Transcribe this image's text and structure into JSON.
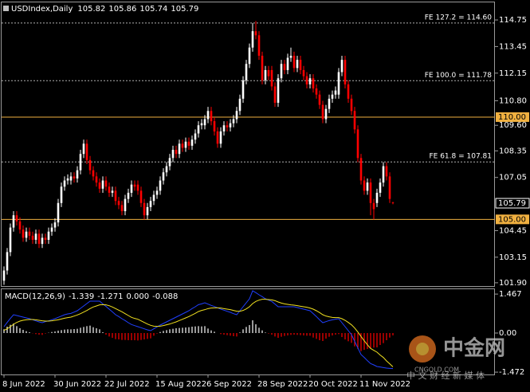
{
  "chart_data": [
    {
      "type": "candlestick",
      "title": "USDIndex,Daily",
      "categories": [
        "8 Jun 2022",
        null,
        null,
        null,
        null,
        null,
        null,
        null,
        null,
        null,
        null,
        null,
        null,
        null,
        null,
        null,
        "30 Jun 2022",
        null,
        null,
        null,
        null,
        null,
        null,
        null,
        null,
        null,
        null,
        null,
        null,
        null,
        null,
        null,
        "22 Jul 2022",
        null,
        null,
        null,
        null,
        null,
        null,
        null,
        null,
        null,
        null,
        null,
        null,
        null,
        null,
        null,
        "15 Aug 2022",
        null,
        null,
        null,
        null,
        null,
        null,
        null,
        null,
        null,
        null,
        null,
        null,
        null,
        null,
        null,
        "6 Sep 2022",
        null,
        null,
        null,
        null,
        null,
        null,
        null,
        null,
        null,
        null,
        null,
        null,
        null,
        null,
        null,
        "28 Sep 2022",
        null,
        null,
        null,
        null,
        null,
        null,
        null,
        null,
        null,
        null,
        null,
        null,
        null,
        null,
        null,
        "20 Oct 2022",
        null,
        null,
        null,
        null,
        null,
        null,
        null,
        null,
        null,
        null,
        null,
        null,
        null,
        null,
        null,
        "11 Nov 2022",
        null,
        null,
        null,
        null,
        null,
        null,
        null,
        null,
        null,
        null
      ],
      "open": [
        102.0,
        102.5,
        103.4,
        104.6,
        105.2,
        104.9,
        104.5,
        104.1,
        104.4,
        104.2,
        104.0,
        104.3,
        103.8,
        104.1,
        104.0,
        104.4,
        104.6,
        104.85,
        105.8,
        106.6,
        106.9,
        106.9,
        107.1,
        107.0,
        107.4,
        108.2,
        108.7,
        107.9,
        107.4,
        107.1,
        106.8,
        106.5,
        106.9,
        106.6,
        106.3,
        106.4,
        105.9,
        105.7,
        105.4,
        106.0,
        106.3,
        106.7,
        106.7,
        106.4,
        105.8,
        105.2,
        105.6,
        105.9,
        106.2,
        106.4,
        106.9,
        107.3,
        107.6,
        108.0,
        108.4,
        108.2,
        108.7,
        108.5,
        108.8,
        108.6,
        108.9,
        109.2,
        109.6,
        109.6,
        109.9,
        110.3,
        109.8,
        109.3,
        108.7,
        109.3,
        109.6,
        109.5,
        109.7,
        109.9,
        110.3,
        110.9,
        111.8,
        112.6,
        113.4,
        114.2,
        114.0,
        113.0,
        111.8,
        112.3,
        112.3,
        111.5,
        110.7,
        111.9,
        112.6,
        112.3,
        112.9,
        113.0,
        112.4,
        112.8,
        112.3,
        112.0,
        111.6,
        111.9,
        111.4,
        111.1,
        110.6,
        109.9,
        110.4,
        110.9,
        111.1,
        111.1,
        112.2,
        112.8,
        111.6,
        110.9,
        110.3,
        109.4,
        108.0,
        106.9,
        106.4,
        106.8,
        105.8,
        105.8,
        106.3,
        106.8,
        107.6,
        107.1,
        105.82
      ],
      "high": [
        102.7,
        103.6,
        104.8,
        105.4,
        105.4,
        105.1,
        104.7,
        104.6,
        104.6,
        104.4,
        104.5,
        104.5,
        104.3,
        104.3,
        104.6,
        104.8,
        105.05,
        106.0,
        106.8,
        107.1,
        107.2,
        107.3,
        107.3,
        107.6,
        108.4,
        108.9,
        108.9,
        108.1,
        107.6,
        107.3,
        107.0,
        107.1,
        107.1,
        106.8,
        106.6,
        106.6,
        106.1,
        105.9,
        106.2,
        106.5,
        106.9,
        106.9,
        106.9,
        106.6,
        106.0,
        105.8,
        106.1,
        106.4,
        106.6,
        107.1,
        107.5,
        107.8,
        108.2,
        108.6,
        108.6,
        108.9,
        108.9,
        109.0,
        109.0,
        109.1,
        109.4,
        109.8,
        109.9,
        110.1,
        110.5,
        110.5,
        110.0,
        109.5,
        109.5,
        109.8,
        109.8,
        109.9,
        110.1,
        110.5,
        111.1,
        112.0,
        112.8,
        113.6,
        114.6,
        114.7,
        114.2,
        113.2,
        112.5,
        112.5,
        112.5,
        111.7,
        112.1,
        112.8,
        112.8,
        113.1,
        113.4,
        113.2,
        113.0,
        113.0,
        112.5,
        112.2,
        112.1,
        112.1,
        111.6,
        111.3,
        110.8,
        110.6,
        111.1,
        111.3,
        111.5,
        112.4,
        113.0,
        113.0,
        111.8,
        111.1,
        110.5,
        109.6,
        108.2,
        107.1,
        107.0,
        107.0,
        106.0,
        106.5,
        107.0,
        107.8,
        107.8,
        107.3,
        105.86
      ],
      "low": [
        101.8,
        102.3,
        103.2,
        104.4,
        104.7,
        104.3,
        103.9,
        103.9,
        104.0,
        103.8,
        103.8,
        103.6,
        103.6,
        103.8,
        103.8,
        104.2,
        104.4,
        104.65,
        105.6,
        106.4,
        106.7,
        106.7,
        106.8,
        106.8,
        107.2,
        108.0,
        107.7,
        107.2,
        106.9,
        106.6,
        106.3,
        106.3,
        106.4,
        106.1,
        106.1,
        105.7,
        105.5,
        105.2,
        105.2,
        105.8,
        106.1,
        106.4,
        106.2,
        105.6,
        105.0,
        105.0,
        105.4,
        105.7,
        106.0,
        106.2,
        106.7,
        107.1,
        107.4,
        107.8,
        108.0,
        108.0,
        108.3,
        108.3,
        108.4,
        108.4,
        108.7,
        109.0,
        109.4,
        109.4,
        109.7,
        109.6,
        109.1,
        108.5,
        108.5,
        109.1,
        109.3,
        109.3,
        109.5,
        109.7,
        110.1,
        110.7,
        111.6,
        112.4,
        113.2,
        113.8,
        112.8,
        111.6,
        111.6,
        111.8,
        111.3,
        110.5,
        110.5,
        111.7,
        112.1,
        112.1,
        112.7,
        112.2,
        112.2,
        112.1,
        111.8,
        111.4,
        111.4,
        111.2,
        110.9,
        110.4,
        109.7,
        109.7,
        110.2,
        110.7,
        110.9,
        110.9,
        112.0,
        111.4,
        110.7,
        110.1,
        109.2,
        107.8,
        106.7,
        106.2,
        106.2,
        105.2,
        105.0,
        105.6,
        106.1,
        106.6,
        106.9,
        105.8,
        105.74
      ],
      "close": [
        102.5,
        103.4,
        104.6,
        105.2,
        104.9,
        104.5,
        104.1,
        104.4,
        104.2,
        104.0,
        104.3,
        103.8,
        104.1,
        104.0,
        104.4,
        104.6,
        104.85,
        105.8,
        106.6,
        106.9,
        107.0,
        107.1,
        107.0,
        107.4,
        108.2,
        108.7,
        107.9,
        107.4,
        107.1,
        106.8,
        106.5,
        106.9,
        106.6,
        106.3,
        106.4,
        105.9,
        105.7,
        105.4,
        106.0,
        106.3,
        106.7,
        106.6,
        106.4,
        105.8,
        105.2,
        105.6,
        105.9,
        106.2,
        106.4,
        106.9,
        107.3,
        107.6,
        108.0,
        108.4,
        108.2,
        108.7,
        108.5,
        108.8,
        108.6,
        108.9,
        109.2,
        109.6,
        109.7,
        109.9,
        110.3,
        109.8,
        109.3,
        108.7,
        109.3,
        109.6,
        109.5,
        109.7,
        109.9,
        110.3,
        110.9,
        111.8,
        112.6,
        113.4,
        114.2,
        114.0,
        113.0,
        111.8,
        112.3,
        112.0,
        111.5,
        110.7,
        111.9,
        112.6,
        112.3,
        112.9,
        113.0,
        112.4,
        112.8,
        112.3,
        112.0,
        111.6,
        111.9,
        111.4,
        111.1,
        110.6,
        109.9,
        110.4,
        110.9,
        111.1,
        111.3,
        112.2,
        112.8,
        111.6,
        110.9,
        110.3,
        109.4,
        108.0,
        106.9,
        106.4,
        106.8,
        105.8,
        105.5,
        106.3,
        106.8,
        107.6,
        107.1,
        106.0,
        105.79
      ],
      "up_color": "#ffffff",
      "down_color": "#ff0000",
      "ylim": [
        101.74,
        115.57
      ],
      "yticks": [
        114.75,
        113.45,
        112.15,
        {
          "value": 110.8,
          "label": "110.80"
        },
        {
          "value": 109.6,
          "label": "109.60"
        },
        108.35,
        107.05,
        104.45,
        103.15,
        {
          "value": 101.9,
          "label": "101.90"
        }
      ],
      "levels": [
        {
          "value": 110,
          "label": "110.00"
        },
        {
          "value": 105,
          "label": "105.00"
        }
      ],
      "level_color": "#f0b040",
      "fib_levels": [
        {
          "value": 114.6,
          "label": "FE 127.2 = 114.60"
        },
        {
          "value": 111.78,
          "label": "FE 100.0 = 111.78"
        },
        {
          "value": 107.81,
          "label": "FE 61.8 = 107.81"
        }
      ],
      "fib_color": "#b0b0b0"
    },
    {
      "type": "macd",
      "title": "MACD(12,26,9)",
      "readout": [
        -1.339,
        -1.271,
        {
          "value": 0,
          "label": "0.000"
        },
        -0.088
      ],
      "series": [
        {
          "kind": "bar",
          "color": "#ffffff",
          "negative_color": "#ff0000",
          "values": [
            0.14,
            0.24,
            0.31,
            0.36,
            0.26,
            0.18,
            0.12,
            0.07,
            0.03,
            -0.01,
            -0.04,
            -0.06,
            -0.07,
            -0.02,
            0.01,
            0.04,
            0.06,
            0.09,
            0.11,
            0.13,
            0.14,
            0.14,
            0.15,
            0.16,
            0.2,
            0.23,
            0.26,
            0.28,
            0.22,
            0.18,
            0.14,
            0.03,
            -0.06,
            -0.13,
            -0.18,
            -0.23,
            -0.24,
            -0.26,
            -0.26,
            -0.27,
            -0.27,
            -0.27,
            -0.28,
            -0.26,
            -0.24,
            -0.22,
            -0.2,
            -0.1,
            -0.02,
            0.04,
            0.08,
            0.11,
            0.14,
            0.16,
            0.18,
            0.19,
            0.2,
            0.21,
            0.22,
            0.24,
            0.25,
            0.26,
            0.25,
            0.26,
            0.17,
            0.1,
            0.05,
            0.0,
            -0.04,
            -0.06,
            -0.08,
            -0.1,
            -0.12,
            -0.13,
            0.02,
            0.14,
            0.23,
            0.3,
            0.48,
            0.33,
            0.2,
            0.1,
            0.02,
            -0.02,
            -0.06,
            -0.13,
            -0.18,
            -0.14,
            -0.11,
            -0.09,
            -0.07,
            -0.06,
            -0.07,
            -0.08,
            -0.09,
            -0.1,
            -0.1,
            -0.17,
            -0.22,
            -0.27,
            -0.3,
            -0.21,
            -0.14,
            -0.09,
            -0.06,
            -0.04,
            -0.15,
            -0.24,
            -0.31,
            -0.37,
            -0.5,
            -0.6,
            -0.68,
            -0.63,
            -0.6,
            -0.57,
            -0.55,
            -0.54,
            -0.45,
            -0.38,
            -0.27,
            -0.17,
            -0.088
          ]
        },
        {
          "kind": "line",
          "color": "#2040ff",
          "values": [
            0.24,
            0.4,
            0.55,
            0.69,
            0.66,
            0.63,
            0.6,
            0.57,
            0.54,
            0.5,
            0.46,
            0.42,
            0.39,
            0.43,
            0.46,
            0.5,
            0.54,
            0.59,
            0.64,
            0.69,
            0.72,
            0.74,
            0.79,
            0.84,
            0.93,
            1.02,
            1.11,
            1.2,
            1.2,
            1.2,
            1.2,
            1.1,
            1.0,
            0.9,
            0.8,
            0.69,
            0.62,
            0.54,
            0.47,
            0.39,
            0.32,
            0.28,
            0.24,
            0.2,
            0.16,
            0.12,
            0.09,
            0.16,
            0.23,
            0.3,
            0.36,
            0.42,
            0.48,
            0.54,
            0.6,
            0.66,
            0.72,
            0.78,
            0.84,
            0.92,
            0.99,
            1.07,
            1.1,
            1.14,
            1.09,
            1.04,
            1.0,
            0.95,
            0.9,
            0.86,
            0.82,
            0.78,
            0.73,
            0.69,
            0.84,
            0.99,
            1.14,
            1.29,
            1.59,
            1.52,
            1.44,
            1.37,
            1.29,
            1.24,
            1.19,
            1.09,
            0.99,
            0.99,
            0.99,
            0.99,
            0.99,
            0.99,
            0.96,
            0.93,
            0.9,
            0.87,
            0.84,
            0.73,
            0.62,
            0.5,
            0.39,
            0.43,
            0.47,
            0.5,
            0.52,
            0.54,
            0.39,
            0.24,
            0.09,
            -0.06,
            -0.31,
            -0.56,
            -0.81,
            -0.92,
            -1.04,
            -1.15,
            -1.2,
            -1.26,
            -1.28,
            -1.3,
            -1.32,
            -1.33,
            -1.339
          ]
        },
        {
          "kind": "line",
          "color": "#f0e020",
          "values": [
            0.1,
            0.16,
            0.24,
            0.33,
            0.4,
            0.45,
            0.48,
            0.5,
            0.51,
            0.51,
            0.5,
            0.48,
            0.46,
            0.45,
            0.45,
            0.46,
            0.48,
            0.5,
            0.53,
            0.56,
            0.58,
            0.6,
            0.64,
            0.68,
            0.73,
            0.79,
            0.85,
            0.92,
            0.98,
            1.02,
            1.06,
            1.07,
            1.06,
            1.03,
            0.98,
            0.92,
            0.86,
            0.8,
            0.73,
            0.66,
            0.59,
            0.55,
            0.52,
            0.46,
            0.4,
            0.34,
            0.29,
            0.26,
            0.25,
            0.26,
            0.28,
            0.31,
            0.34,
            0.38,
            0.42,
            0.47,
            0.52,
            0.57,
            0.62,
            0.68,
            0.74,
            0.81,
            0.85,
            0.88,
            0.92,
            0.94,
            0.95,
            0.95,
            0.94,
            0.92,
            0.9,
            0.88,
            0.85,
            0.82,
            0.82,
            0.85,
            0.91,
            0.99,
            1.11,
            1.19,
            1.24,
            1.27,
            1.27,
            1.26,
            1.25,
            1.22,
            1.17,
            1.13,
            1.1,
            1.08,
            1.06,
            1.05,
            1.03,
            1.01,
            0.99,
            0.97,
            0.94,
            0.9,
            0.84,
            0.77,
            0.69,
            0.64,
            0.61,
            0.59,
            0.58,
            0.58,
            0.54,
            0.48,
            0.4,
            0.31,
            0.19,
            0.04,
            -0.13,
            -0.29,
            -0.44,
            -0.58,
            -0.65,
            -0.72,
            -0.83,
            -0.92,
            -1.05,
            -1.16,
            -1.271
          ]
        }
      ],
      "ylim": [
        -1.56,
        1.65
      ],
      "yticks": [
        1.467,
        {
          "value": 0,
          "label": "0.00"
        },
        -1.472
      ]
    }
  ],
  "watermark": {
    "name": "中金网",
    "site": "CNGOLD.COM",
    "slogan": "中 文 财 经 新 媒 体"
  }
}
